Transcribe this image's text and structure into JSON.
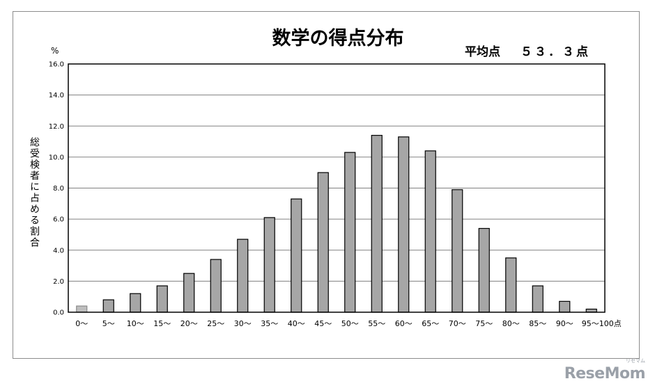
{
  "chart_data": {
    "type": "bar",
    "title": "数学の得点分布",
    "average_label": "平均点",
    "average_value": "５３．３点",
    "ylabel": "総受検者に占める割合",
    "yunit": "%",
    "ylim": [
      0,
      16
    ],
    "yticks": [
      "0.0",
      "2.0",
      "4.0",
      "6.0",
      "8.0",
      "10.0",
      "12.0",
      "14.0",
      "16.0"
    ],
    "grid": true,
    "categories": [
      "0～",
      "5～",
      "10～",
      "15～",
      "20～",
      "25～",
      "30～",
      "35～",
      "40～",
      "45～",
      "50～",
      "55～",
      "60～",
      "65～",
      "70～",
      "75～",
      "80～",
      "85～",
      "90～",
      "95～100点"
    ],
    "values": [
      0.4,
      0.8,
      1.2,
      1.7,
      2.5,
      3.4,
      4.7,
      6.1,
      7.3,
      9.0,
      10.3,
      11.4,
      11.3,
      10.4,
      7.9,
      5.4,
      3.5,
      1.7,
      0.7,
      0.2
    ],
    "colors": {
      "bar": "#a6a6a6",
      "first_bar": "#bfbfbf",
      "grid": "#808080",
      "axis": "#000000"
    }
  },
  "watermark": {
    "text": "ReseMom",
    "small": "リセマム"
  }
}
